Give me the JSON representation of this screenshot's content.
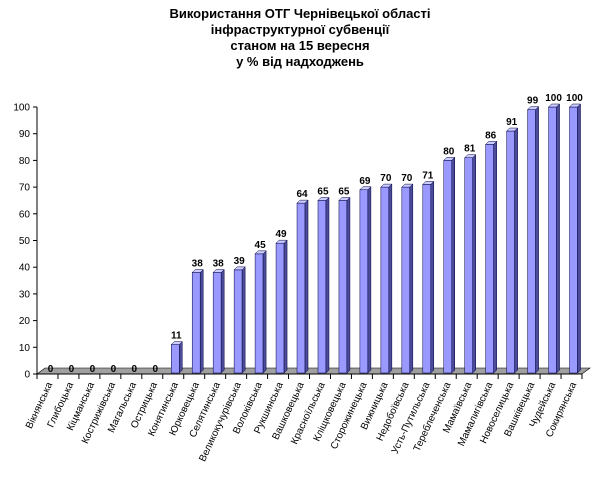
{
  "chart_data": {
    "type": "bar",
    "title": "Використання ОТГ Чернівецької області інфраструктурної субвенції станом на 15 вересня у % від надходжень",
    "title_lines": [
      "Використання ОТГ Чернівецької області",
      "інфраструктурної субвенції",
      "станом на 15 вересня",
      "у % від надходжень"
    ],
    "xlabel": "",
    "ylabel": "",
    "ylim": [
      0,
      100
    ],
    "yticks": [
      0,
      10,
      20,
      30,
      40,
      50,
      60,
      70,
      80,
      90,
      100
    ],
    "grid": false,
    "legend": null,
    "bar_color": "#9999ff",
    "categories": [
      "Вікнянська",
      "Глибоцька",
      "Кіцманська",
      "Кострижівська",
      "Магальська",
      "Острицька",
      "Конятинська",
      "Юрковецька",
      "Селятинська",
      "Великокучурівська",
      "Волоківська",
      "Рукшинська",
      "Вашковецька",
      "Красноїльська",
      "Кліщковецька",
      "Сторожинецька",
      "Вижницька",
      "Недобоївська",
      "Усть-Путильська",
      "Тереблеченська",
      "Мамаївська",
      "Мамалигівська",
      "Новоселицька",
      "Вашківецька",
      "Чудейська",
      "Сокирянська"
    ],
    "values": [
      0,
      0,
      0,
      0,
      0,
      0,
      11,
      38,
      38,
      39,
      45,
      49,
      64,
      65,
      65,
      69,
      70,
      70,
      71,
      80,
      81,
      86,
      91,
      99,
      100,
      100
    ]
  }
}
